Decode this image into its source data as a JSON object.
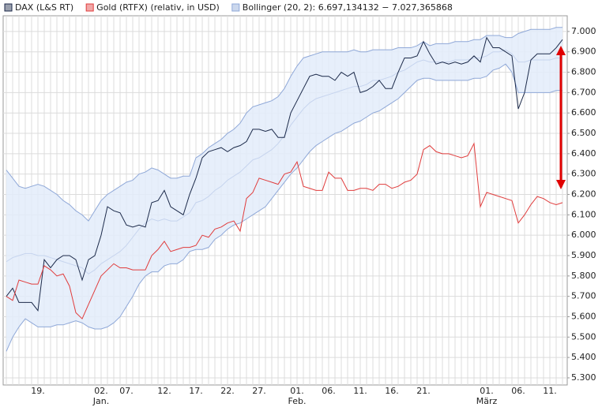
{
  "chart_data": {
    "type": "line",
    "categories": [
      null,
      null,
      null,
      null,
      null,
      "19.",
      null,
      null,
      null,
      null,
      null,
      null,
      null,
      null,
      null,
      "02.",
      null,
      null,
      null,
      "07.",
      null,
      null,
      null,
      null,
      null,
      "12.",
      null,
      null,
      null,
      null,
      "17.",
      null,
      null,
      null,
      null,
      "22.",
      null,
      null,
      null,
      null,
      "27.",
      null,
      null,
      null,
      null,
      null,
      "01.",
      null,
      null,
      null,
      null,
      "06.",
      null,
      null,
      null,
      null,
      "11.",
      null,
      null,
      null,
      null,
      "16.",
      null,
      null,
      null,
      null,
      "21.",
      null,
      null,
      null,
      null,
      null,
      null,
      null,
      null,
      null,
      "01.",
      null,
      null,
      null,
      null,
      "06.",
      null,
      null,
      null,
      null,
      "11.",
      null,
      null
    ],
    "months": [
      null,
      null,
      null,
      null,
      null,
      null,
      null,
      null,
      null,
      null,
      null,
      null,
      null,
      null,
      null,
      "Jan.",
      null,
      null,
      null,
      null,
      null,
      null,
      null,
      null,
      null,
      null,
      null,
      null,
      null,
      null,
      null,
      null,
      null,
      null,
      null,
      null,
      null,
      null,
      null,
      null,
      null,
      null,
      null,
      null,
      null,
      null,
      "Feb.",
      null,
      null,
      null,
      null,
      null,
      null,
      null,
      null,
      null,
      null,
      null,
      null,
      null,
      null,
      null,
      null,
      null,
      null,
      null,
      null,
      null,
      null,
      null,
      null,
      null,
      null,
      null,
      null,
      null,
      "März",
      null,
      null,
      null,
      null,
      null,
      null,
      null,
      null,
      null,
      null,
      null,
      null
    ],
    "series": [
      {
        "name": "DAX (L&S RT)",
        "color": "#1c2a4a",
        "values": [
          5700,
          5740,
          5670,
          5670,
          5670,
          5630,
          5880,
          5840,
          5880,
          5900,
          5900,
          5880,
          5780,
          5880,
          5900,
          6000,
          6140,
          6120,
          6110,
          6050,
          6040,
          6050,
          6040,
          6160,
          6170,
          6220,
          6140,
          6120,
          6100,
          6200,
          6280,
          6380,
          6410,
          6420,
          6430,
          6410,
          6430,
          6440,
          6460,
          6520,
          6520,
          6510,
          6520,
          6480,
          6480,
          6600,
          6660,
          6720,
          6780,
          6790,
          6780,
          6780,
          6760,
          6800,
          6780,
          6800,
          6700,
          6710,
          6730,
          6760,
          6720,
          6720,
          6800,
          6870,
          6870,
          6880,
          6950,
          6890,
          6840,
          6850,
          6840,
          6850,
          6840,
          6850,
          6880,
          6850,
          6970,
          6920,
          6920,
          6900,
          6880,
          6620,
          6700,
          6860,
          6890,
          6890,
          6890,
          6920,
          6960
        ]
      },
      {
        "name": "Gold (RTFX) (relativ, in USD)",
        "color": "#e03c3c",
        "values": [
          5700,
          5680,
          5780,
          5770,
          5760,
          5760,
          5850,
          5830,
          5800,
          5810,
          5750,
          5620,
          5590,
          5660,
          5730,
          5800,
          5830,
          5860,
          5840,
          5840,
          5830,
          5830,
          5830,
          5900,
          5930,
          5970,
          5920,
          5930,
          5940,
          5940,
          5950,
          6000,
          5990,
          6030,
          6040,
          6060,
          6070,
          6020,
          6180,
          6210,
          6280,
          6270,
          6260,
          6250,
          6300,
          6310,
          6360,
          6240,
          6230,
          6220,
          6220,
          6310,
          6280,
          6280,
          6220,
          6220,
          6230,
          6230,
          6220,
          6250,
          6250,
          6230,
          6240,
          6260,
          6270,
          6300,
          6420,
          6440,
          6410,
          6400,
          6400,
          6390,
          6380,
          6390,
          6450,
          6140,
          6210,
          6200,
          6190,
          6180,
          6170,
          6060,
          6100,
          6150,
          6190,
          6180,
          6160,
          6150,
          6160
        ]
      },
      {
        "name": "Bollinger (20, 2): 6.697,134132 − 7.027,365868",
        "color": "#8fa8d8",
        "values": [
          5870,
          5890,
          5900,
          5910,
          5910,
          5900,
          5900,
          5890,
          5880,
          5870,
          5860,
          5850,
          5840,
          5810,
          5830,
          5860,
          5880,
          5900,
          5920,
          5950,
          5990,
          6030,
          6060,
          6080,
          6070,
          6080,
          6070,
          6070,
          6090,
          6110,
          6160,
          6170,
          6190,
          6220,
          6240,
          6270,
          6290,
          6310,
          6340,
          6370,
          6380,
          6400,
          6420,
          6450,
          6490,
          6540,
          6580,
          6620,
          6650,
          6670,
          6680,
          6690,
          6700,
          6710,
          6720,
          6730,
          6730,
          6740,
          6760,
          6760,
          6770,
          6780,
          6800,
          6810,
          6830,
          6850,
          6860,
          6850,
          6850,
          6850,
          6850,
          6860,
          6860,
          6860,
          6870,
          6870,
          6880,
          6900,
          6900,
          6910,
          6890,
          6850,
          6850,
          6860,
          6860,
          6860,
          6860,
          6870,
          6870
        ],
        "upper": [
          6320,
          6280,
          6240,
          6230,
          6240,
          6250,
          6240,
          6220,
          6200,
          6170,
          6150,
          6120,
          6100,
          6070,
          6120,
          6170,
          6200,
          6220,
          6240,
          6260,
          6270,
          6300,
          6310,
          6330,
          6320,
          6300,
          6280,
          6280,
          6290,
          6290,
          6380,
          6400,
          6430,
          6450,
          6470,
          6500,
          6520,
          6550,
          6600,
          6630,
          6640,
          6650,
          6660,
          6680,
          6720,
          6780,
          6830,
          6870,
          6880,
          6890,
          6900,
          6900,
          6900,
          6900,
          6900,
          6910,
          6900,
          6900,
          6910,
          6910,
          6910,
          6910,
          6920,
          6920,
          6920,
          6930,
          6950,
          6930,
          6940,
          6940,
          6940,
          6950,
          6950,
          6950,
          6960,
          6960,
          6980,
          6980,
          6980,
          6970,
          6970,
          6990,
          7000,
          7010,
          7010,
          7010,
          7010,
          7020,
          7020
        ],
        "lower": [
          5430,
          5500,
          5550,
          5590,
          5570,
          5550,
          5550,
          5550,
          5560,
          5560,
          5570,
          5580,
          5570,
          5550,
          5540,
          5540,
          5550,
          5570,
          5600,
          5650,
          5700,
          5760,
          5800,
          5820,
          5820,
          5850,
          5860,
          5860,
          5880,
          5920,
          5930,
          5930,
          5940,
          5980,
          6000,
          6030,
          6050,
          6060,
          6080,
          6100,
          6120,
          6140,
          6180,
          6220,
          6260,
          6300,
          6330,
          6370,
          6410,
          6440,
          6460,
          6480,
          6500,
          6510,
          6530,
          6550,
          6560,
          6580,
          6600,
          6610,
          6630,
          6650,
          6670,
          6700,
          6730,
          6760,
          6770,
          6770,
          6760,
          6760,
          6760,
          6760,
          6760,
          6760,
          6770,
          6770,
          6780,
          6810,
          6820,
          6840,
          6800,
          6700,
          6700,
          6700,
          6700,
          6700,
          6700,
          6710,
          6710
        ]
      }
    ],
    "ylim": [
      5265,
      7077
    ],
    "yticks": [
      {
        "value": 5300,
        "label": "5.300"
      },
      {
        "value": 5400,
        "label": "5.400"
      },
      {
        "value": 5500,
        "label": "5.500"
      },
      {
        "value": 5600,
        "label": "5.600"
      },
      {
        "value": 5700,
        "label": "5.700"
      },
      {
        "value": 5800,
        "label": "5.800"
      },
      {
        "value": 5900,
        "label": "5.900"
      },
      {
        "value": 6000,
        "label": "6.000"
      },
      {
        "value": 6100,
        "label": "6.100"
      },
      {
        "value": 6200,
        "label": "6.200"
      },
      {
        "value": 6300,
        "label": "6.300"
      },
      {
        "value": 6400,
        "label": "6.400"
      },
      {
        "value": 6500,
        "label": "6.500"
      },
      {
        "value": 6600,
        "label": "6.600"
      },
      {
        "value": 6700,
        "label": "6.700"
      },
      {
        "value": 6800,
        "label": "6.800"
      },
      {
        "value": 6900,
        "label": "6.900"
      },
      {
        "value": 7000,
        "label": "7.000"
      }
    ],
    "grid": true,
    "legend": "top"
  }
}
